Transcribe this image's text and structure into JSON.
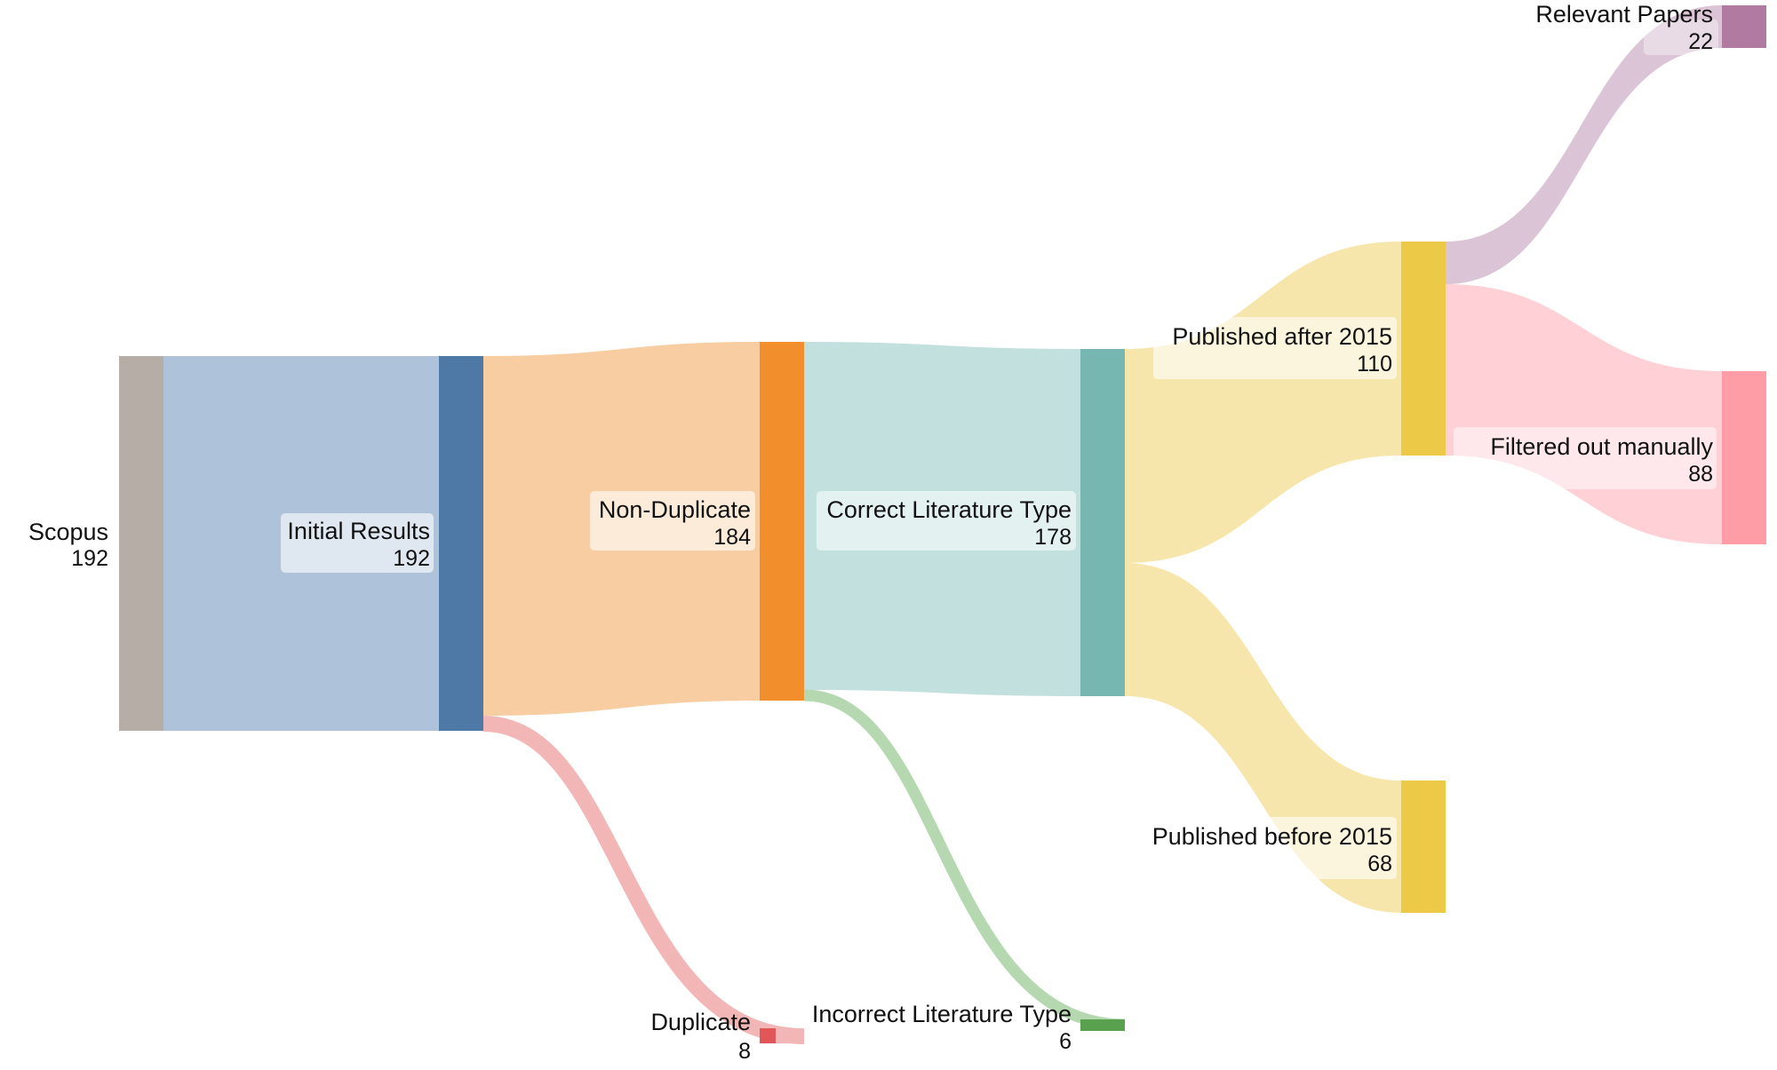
{
  "colors": {
    "scopus": "#b7ada7",
    "initial": "#4e79a7",
    "initial_band": "#aec2d9",
    "nondup": "#f28e2b",
    "nondup_band": "#f7cda1",
    "duplicate": "#e15759",
    "duplicate_band": "#f2b6b7",
    "correct": "#76b7b2",
    "correct_band": "#c1e0de",
    "incorrect": "#59a14f",
    "incorrect_band": "#b5d8b1",
    "published": "#edc948",
    "published_band": "#f7e6ab",
    "relevant": "#b07aa1",
    "relevant_band": "#dbc4d6",
    "filtered": "#ff9da7",
    "filtered_band": "#ffd0d6"
  },
  "nodes": [
    {
      "id": "scopus",
      "name": "Scopus",
      "value": "192"
    },
    {
      "id": "initial",
      "name": "Initial Results",
      "value": "192"
    },
    {
      "id": "nondup",
      "name": "Non-Duplicate",
      "value": "184"
    },
    {
      "id": "duplicate",
      "name": "Duplicate",
      "value": "8"
    },
    {
      "id": "correct",
      "name": "Correct Literature Type",
      "value": "178"
    },
    {
      "id": "incorrect",
      "name": "Incorrect Literature Type",
      "value": "6"
    },
    {
      "id": "after2015",
      "name": "Published after 2015",
      "value": "110"
    },
    {
      "id": "before2015",
      "name": "Published before 2015",
      "value": "68"
    },
    {
      "id": "relevant",
      "name": "Relevant Papers",
      "value": "22"
    },
    {
      "id": "filtered",
      "name": "Filtered out manually",
      "value": "88"
    }
  ],
  "links": [
    {
      "source": "scopus",
      "target": "initial",
      "value": 192
    },
    {
      "source": "initial",
      "target": "nondup",
      "value": 184
    },
    {
      "source": "initial",
      "target": "duplicate",
      "value": 8
    },
    {
      "source": "nondup",
      "target": "correct",
      "value": 178
    },
    {
      "source": "nondup",
      "target": "incorrect",
      "value": 6
    },
    {
      "source": "correct",
      "target": "after2015",
      "value": 110
    },
    {
      "source": "correct",
      "target": "before2015",
      "value": 68
    },
    {
      "source": "after2015",
      "target": "relevant",
      "value": 22
    },
    {
      "source": "after2015",
      "target": "filtered",
      "value": 88
    }
  ]
}
